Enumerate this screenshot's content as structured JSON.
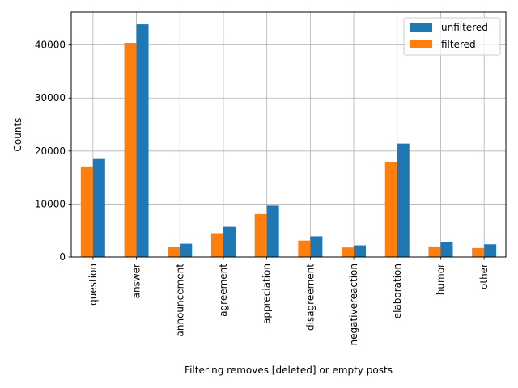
{
  "chart_data": {
    "type": "bar",
    "xlabel": "Filtering removes [deleted] or empty posts",
    "ylabel": "Counts",
    "categories": [
      "question",
      "answer",
      "announcement",
      "agreement",
      "appreciation",
      "disagreement",
      "negativereaction",
      "elaboration",
      "humor",
      "other"
    ],
    "series": [
      {
        "name": "filtered",
        "color": "#ff7f0e",
        "values": [
          17100,
          40400,
          1900,
          4500,
          8100,
          3100,
          1800,
          17900,
          2000,
          1700
        ]
      },
      {
        "name": "unfiltered",
        "color": "#1f77b4",
        "values": [
          18500,
          43900,
          2500,
          5700,
          9700,
          3900,
          2200,
          21400,
          2800,
          2400
        ]
      }
    ],
    "ylim": [
      0,
      46200
    ],
    "yticks": [
      0,
      10000,
      20000,
      30000,
      40000
    ],
    "legend": {
      "position": "top-right",
      "entries": [
        "unfiltered",
        "filtered"
      ]
    },
    "grid": true
  }
}
